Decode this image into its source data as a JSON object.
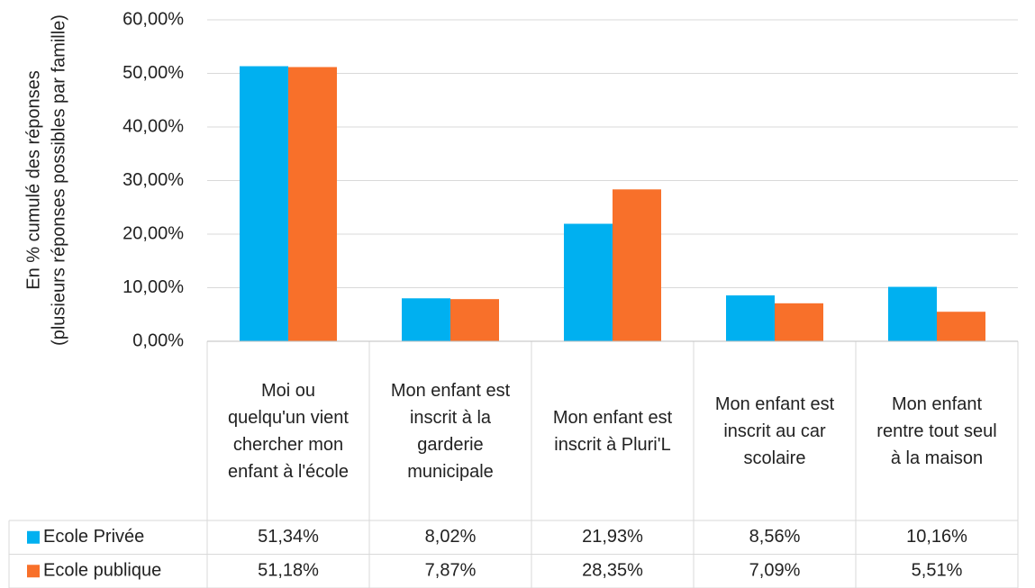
{
  "chart_data": {
    "type": "bar",
    "y_label": [
      "En % cumulé des réponses",
      "(plusieurs réponses possibles par famille)"
    ],
    "categories": [
      "Moi ou quelqu'un vient chercher mon enfant à l'école",
      "Mon enfant est inscrit à la garderie municipale",
      "Mon enfant est inscrit à Pluri'L",
      "Mon enfant est inscrit au car scolaire",
      "Mon enfant rentre tout seul à la maison"
    ],
    "series": [
      {
        "name": "Ecole Privée",
        "color": "#00b0f0",
        "values": [
          51.34,
          8.02,
          21.93,
          8.56,
          10.16
        ],
        "value_labels": [
          "51,34%",
          "8,02%",
          "21,93%",
          "8,56%",
          "10,16%"
        ]
      },
      {
        "name": "Ecole publique",
        "color": "#f8702a",
        "values": [
          51.18,
          7.87,
          28.35,
          7.09,
          5.51
        ],
        "value_labels": [
          "51,18%",
          "7,87%",
          "28,35%",
          "7,09%",
          "5,51%"
        ]
      }
    ],
    "ylim": [
      0,
      60
    ],
    "yticks": [
      {
        "value": 0,
        "label": "0,00%"
      },
      {
        "value": 10,
        "label": "10,00%"
      },
      {
        "value": 20,
        "label": "20,00%"
      },
      {
        "value": 30,
        "label": "30,00%"
      },
      {
        "value": 40,
        "label": "40,00%"
      },
      {
        "value": 50,
        "label": "50,00%"
      },
      {
        "value": 60,
        "label": "60,00%"
      }
    ],
    "grid": true
  }
}
